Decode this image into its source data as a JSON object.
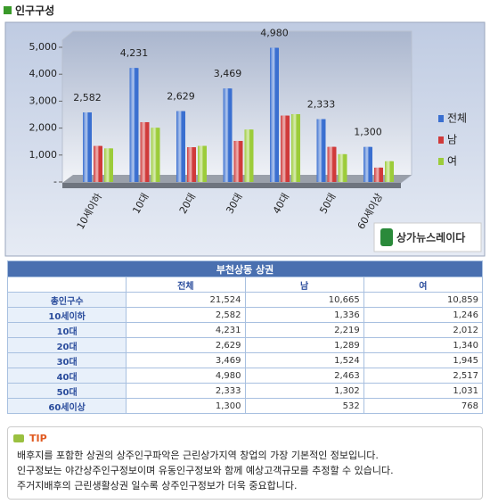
{
  "header": {
    "title": "인구구성"
  },
  "chart_data": {
    "type": "bar",
    "categories": [
      "10세이하",
      "10대",
      "20대",
      "30대",
      "40대",
      "50대",
      "60세이상"
    ],
    "series": [
      {
        "name": "전체",
        "color": "#3a6fd0",
        "values": [
          2582,
          4231,
          2629,
          3469,
          4980,
          2333,
          1300
        ],
        "value_labels": [
          "2,582",
          "4,231",
          "2,629",
          "3,469",
          "4,980",
          "2,333",
          "1,300"
        ]
      },
      {
        "name": "남",
        "color": "#d03a3a",
        "values": [
          1336,
          2219,
          1289,
          1524,
          2463,
          1302,
          532
        ]
      },
      {
        "name": "여",
        "color": "#9ccc3a",
        "values": [
          1246,
          2012,
          1340,
          1945,
          2517,
          1031,
          768
        ]
      }
    ],
    "ylim": [
      0,
      5000
    ],
    "yticks": [
      {
        "value": 0,
        "label": "-"
      },
      {
        "value": 1000,
        "label": "1,000"
      },
      {
        "value": 2000,
        "label": "2,000"
      },
      {
        "value": 3000,
        "label": "3,000"
      },
      {
        "value": 4000,
        "label": "4,000"
      },
      {
        "value": 5000,
        "label": "5,000"
      }
    ],
    "grid": false,
    "legend": "right"
  },
  "logo": "상가뉴스레이다",
  "table": {
    "title": "부천상동 상권",
    "columns": [
      "전체",
      "남",
      "여"
    ],
    "rows": [
      [
        "총인구수",
        "21,524",
        "10,665",
        "10,859"
      ],
      [
        "10세이하",
        "2,582",
        "1,336",
        "1,246"
      ],
      [
        "10대",
        "4,231",
        "2,219",
        "2,012"
      ],
      [
        "20대",
        "2,629",
        "1,289",
        "1,340"
      ],
      [
        "30대",
        "3,469",
        "1,524",
        "1,945"
      ],
      [
        "40대",
        "4,980",
        "2,463",
        "2,517"
      ],
      [
        "50대",
        "2,333",
        "1,302",
        "1,031"
      ],
      [
        "60세이상",
        "1,300",
        "532",
        "768"
      ]
    ]
  },
  "tip": {
    "label": "TIP",
    "lines": [
      "배후지를 포함한 상권의 상주인구파악은 근린상가지역 창업의 가장 기본적인 정보입니다.",
      "인구정보는 야간상주인구정보이며 유동인구정보와 함께 예상고객규모를 추정할 수 있습니다.",
      "주거지배후의 근린생활상권 일수록 상주인구정보가 더욱 중요합니다."
    ]
  }
}
